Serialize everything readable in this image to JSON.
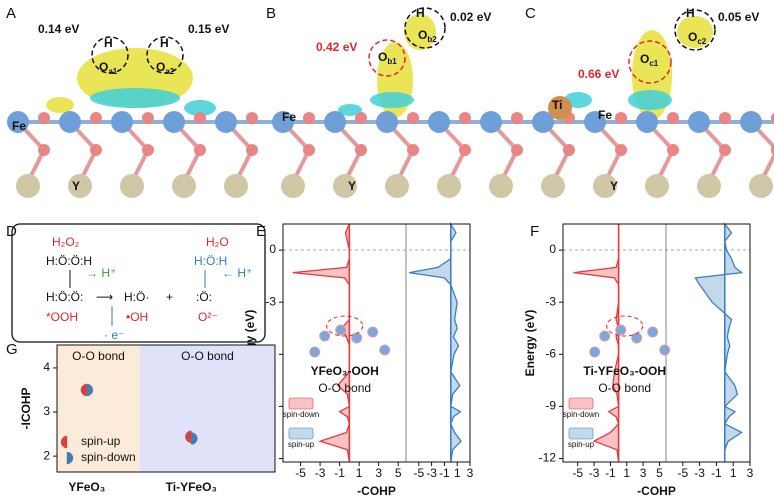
{
  "panels": {
    "A": {
      "letter": "A",
      "e1": "0.14 eV",
      "e2": "0.15 eV",
      "h1": "H",
      "h2": "H",
      "o1": {
        "base": "O",
        "sub": "a1"
      },
      "o2": {
        "base": "O",
        "sub": "a2"
      },
      "fe": "Fe",
      "y": "Y"
    },
    "B": {
      "letter": "B",
      "e1": "0.42 eV",
      "e2": "0.02 eV",
      "h": "H",
      "o2": {
        "base": "O",
        "sub": "b2"
      },
      "o1": {
        "base": "O",
        "sub": "b1"
      },
      "fe": "Fe",
      "y": "Y"
    },
    "C": {
      "letter": "C",
      "e1": "0.66 eV",
      "e2": "0.05 eV",
      "h": "H",
      "o2": {
        "base": "O",
        "sub": "c2"
      },
      "o1": {
        "base": "O",
        "sub": "c1"
      },
      "ti": "Ti",
      "fe": "Fe",
      "y": "Y"
    },
    "D": {
      "letter": "D",
      "h2o2": "H₂O₂",
      "peroxide": "H:Ö:Ö:H",
      "hplus1": "→ H⁺",
      "ooh": "H:Ö:Ö:",
      "ooh_label": "*OOH",
      "arrow": "⟶",
      "oh": "H:Ö·",
      "oh_label": "•OH",
      "plus": "+",
      "h2o": "H₂O",
      "water": "H:Ö:H",
      "hplus2": "← H⁺",
      "oxide": ":Ö:",
      "oxide_label": "O²⁻",
      "electron": "· e⁻"
    },
    "E": {
      "letter": "E"
    },
    "F": {
      "letter": "F"
    },
    "G": {
      "letter": "G"
    }
  },
  "chart_data": [
    {
      "type": "cohp",
      "title": "YFeO₃-OOH",
      "subtitle": "O-O bond",
      "xlabel": "-COHP",
      "ylabel": "Energy (eV)",
      "energy": [
        1.5,
        1,
        0.5,
        0,
        -0.5,
        -1,
        -1.3,
        -1.6,
        -2,
        -3,
        -4,
        -4.5,
        -5,
        -5.5,
        -6,
        -7,
        -7.8,
        -8.3,
        -9,
        -9.3,
        -9.6,
        -10,
        -10.5,
        -11,
        -11.5,
        -12.2
      ],
      "ylim": [
        -12.2,
        1.5
      ],
      "yticks": [
        0,
        -3,
        -6,
        -9,
        -12
      ],
      "subplots": [
        {
          "xlim": [
            -6.8,
            5.8
          ],
          "xticks": [
            -5,
            -3,
            -1,
            1,
            3,
            5
          ]
        },
        {
          "xlim": [
            -7,
            3
          ],
          "xticks": [
            -5,
            -3,
            -1,
            1,
            3
          ]
        }
      ],
      "series": [
        {
          "name": "spin-down",
          "color": "#e8393f",
          "subplot": 0,
          "values": [
            0,
            -0.4,
            -0.2,
            0,
            0,
            -0.3,
            -5.8,
            -0.5,
            0,
            0,
            0,
            -0.8,
            -0.3,
            0,
            0,
            0,
            -1.2,
            -0.2,
            0,
            -1,
            -0.2,
            0,
            -0.3,
            -3,
            -0.2,
            0
          ]
        },
        {
          "name": "spin-up",
          "color": "#3a7fc0",
          "subplot": 1,
          "values": [
            0,
            0.8,
            0,
            0,
            0,
            -2,
            -6.5,
            -1,
            0,
            1,
            0.6,
            1,
            0.4,
            1.2,
            0.5,
            0,
            1.4,
            0.3,
            0,
            1.5,
            0.4,
            0,
            0.6,
            1.6,
            0.3,
            0
          ]
        }
      ]
    },
    {
      "type": "cohp",
      "title": "Ti-YFeO₃-OOH",
      "subtitle": "O-O bond",
      "xlabel": "-COHP",
      "ylabel": "Energy (eV)",
      "energy": [
        1.5,
        1,
        0.5,
        0,
        -0.5,
        -1,
        -1.3,
        -1.6,
        -2,
        -3,
        -4,
        -4.5,
        -5,
        -5.5,
        -6,
        -7,
        -7.8,
        -8.3,
        -9,
        -9.3,
        -9.6,
        -10,
        -10.5,
        -11,
        -11.5,
        -12.2
      ],
      "ylim": [
        -12.2,
        1.5
      ],
      "yticks": [
        0,
        -3,
        -6,
        -9,
        -12
      ],
      "subplots": [
        {
          "xlim": [
            -6.8,
            5.8
          ],
          "xticks": [
            -5,
            -3,
            -1,
            1,
            3,
            5
          ]
        },
        {
          "xlim": [
            -7,
            3
          ],
          "xticks": [
            -5,
            -3,
            -1,
            1,
            3
          ]
        }
      ],
      "series": [
        {
          "name": "spin-down",
          "color": "#e8393f",
          "subplot": 0,
          "values": [
            0,
            0,
            0,
            0,
            0,
            -0.3,
            -5.5,
            -0.5,
            0,
            0,
            -0.3,
            0,
            -0.3,
            0,
            0,
            -0.5,
            -0.7,
            -0.2,
            0,
            -1.2,
            -0.3,
            0,
            -1,
            -3,
            -0.2,
            0
          ]
        },
        {
          "name": "spin-up",
          "color": "#3a7fc0",
          "subplot": 1,
          "values": [
            0,
            0.8,
            0,
            0.2,
            0.8,
            1.2,
            2,
            -3.5,
            -3,
            -1.5,
            0.8,
            0.5,
            0.3,
            0.6,
            0.3,
            0,
            1.2,
            1.5,
            0,
            1.2,
            0.5,
            0,
            2,
            0.4,
            0,
            0
          ]
        }
      ]
    },
    {
      "type": "split-scatter",
      "ylabel": "-ICOHP",
      "categories": [
        "YFeO₃",
        "Ti-YFeO₃"
      ],
      "annotations": [
        "O-O bond",
        "O-O bond"
      ],
      "background_colors": [
        "#fcebd9",
        "#dfe2f8"
      ],
      "ylim": [
        1.64,
        4.52
      ],
      "yticks": [
        2,
        3,
        4
      ],
      "series": [
        {
          "name": "spin-up",
          "color": "#e8393f",
          "values": [
            3.5,
            2.44
          ]
        },
        {
          "name": "spin-down",
          "color": "#3a7fc0",
          "values": [
            3.5,
            2.4
          ]
        }
      ]
    }
  ]
}
